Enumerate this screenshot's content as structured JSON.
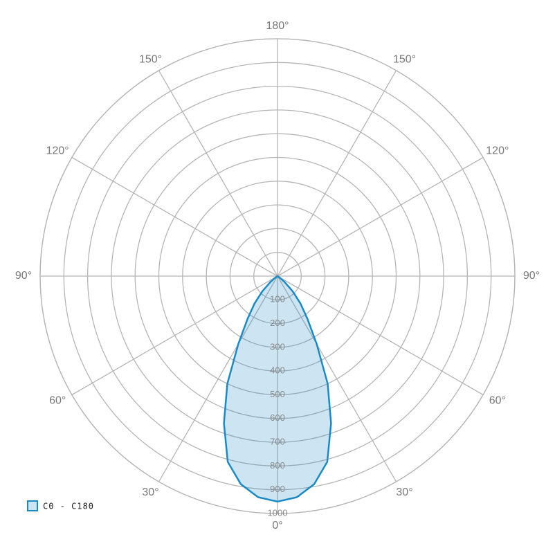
{
  "chart_data": {
    "type": "polar",
    "series": [
      {
        "name": "C0 - C180",
        "color": "#1a8ac6",
        "x": [
          -60,
          -55,
          -50,
          -45,
          -40,
          -35,
          -30,
          -25,
          -20,
          -15,
          -10,
          -5,
          0,
          5,
          10,
          15,
          20,
          25,
          30,
          35,
          40,
          45,
          50,
          55,
          60
        ],
        "values": [
          0,
          15,
          40,
          90,
          150,
          220,
          330,
          500,
          660,
          810,
          890,
          935,
          950,
          935,
          890,
          810,
          660,
          500,
          330,
          220,
          150,
          90,
          40,
          15,
          0
        ]
      }
    ],
    "ylim": [
      0,
      1000
    ],
    "yticks": [
      100,
      200,
      300,
      400,
      500,
      600,
      700,
      800,
      900,
      1000
    ],
    "xticks": [
      {
        "value": 0,
        "label": "0°"
      },
      {
        "value": 30,
        "label": "30°"
      },
      {
        "value": 60,
        "label": "60°"
      },
      {
        "value": 90,
        "label": "90°"
      },
      {
        "value": 120,
        "label": "120°"
      },
      {
        "value": 150,
        "label": "150°"
      },
      {
        "value": 180,
        "label": "180°"
      }
    ],
    "xticks_left": [
      {
        "value": 30,
        "label": "30°"
      },
      {
        "value": 60,
        "label": "60°"
      },
      {
        "value": 90,
        "label": "90°"
      },
      {
        "value": 120,
        "label": "120°"
      },
      {
        "value": 150,
        "label": "150°"
      }
    ],
    "grid": true
  }
}
